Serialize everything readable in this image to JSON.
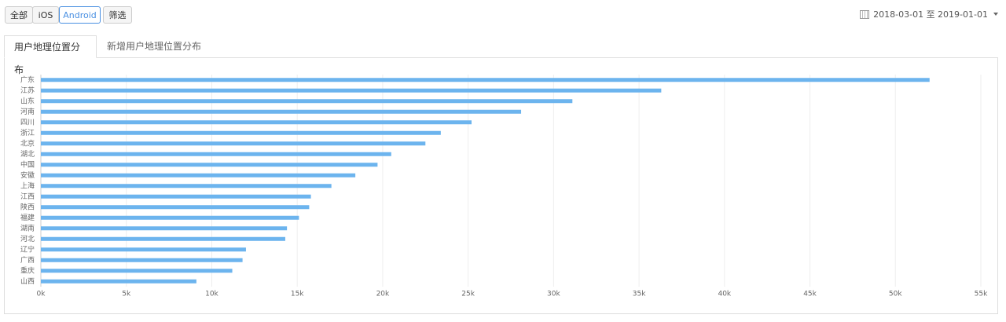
{
  "toolbar": {
    "buttons": [
      "全部",
      "iOS",
      "Android",
      "筛选"
    ],
    "date_range": "2018-03-01 至 2019-01-01"
  },
  "tabs": [
    "用户地理位置分布",
    "新增用户地理位置分布"
  ],
  "chart_data": {
    "type": "bar",
    "orientation": "horizontal",
    "categories": [
      "广东",
      "江苏",
      "山东",
      "河南",
      "四川",
      "浙江",
      "北京",
      "湖北",
      "中国",
      "安徽",
      "上海",
      "江西",
      "陕西",
      "福建",
      "湖南",
      "河北",
      "辽宁",
      "广西",
      "重庆",
      "山西"
    ],
    "values": [
      52000,
      36300,
      31100,
      28100,
      25200,
      23400,
      22500,
      20500,
      19700,
      18400,
      17000,
      15800,
      15700,
      15100,
      14400,
      14300,
      12000,
      11800,
      11200,
      9100
    ],
    "color": "#6cb4ee",
    "xlim": [
      0,
      55000
    ],
    "xticks": [
      {
        "value": 0,
        "label": "0k"
      },
      {
        "value": 5000,
        "label": "5k"
      },
      {
        "value": 10000,
        "label": "10k"
      },
      {
        "value": 15000,
        "label": "15k"
      },
      {
        "value": 20000,
        "label": "20k"
      },
      {
        "value": 25000,
        "label": "25k"
      },
      {
        "value": 30000,
        "label": "30k"
      },
      {
        "value": 35000,
        "label": "35k"
      },
      {
        "value": 40000,
        "label": "40k"
      },
      {
        "value": 45000,
        "label": "45k"
      },
      {
        "value": 50000,
        "label": "50k"
      },
      {
        "value": 55000,
        "label": "55k"
      }
    ],
    "grid": true
  }
}
